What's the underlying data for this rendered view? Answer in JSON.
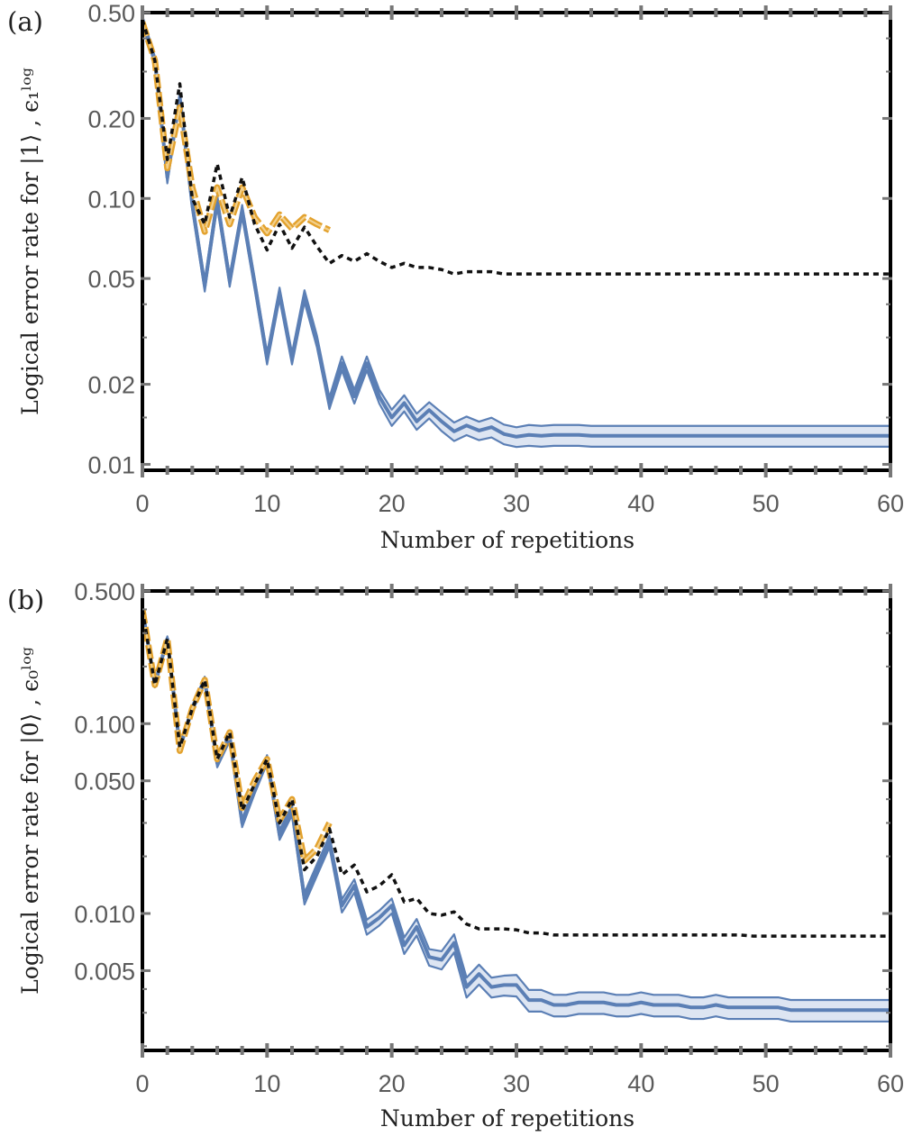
{
  "colors": {
    "theory": "#5b7fb5",
    "band_fill": "#dde5f2",
    "experiment": "#e3a22e",
    "experiment_light": "#f2d08c",
    "classical": "#111111",
    "frame": "#000000",
    "tick_label": "#5a5a5a"
  },
  "chart_data": [
    {
      "type": "line",
      "panel_label": "(a)",
      "xlabel": "Number of repetitions",
      "ylabel": "Logical error rate for |1⟩ , ϵ₁ˡᵒᵍ",
      "xlim": [
        0,
        60
      ],
      "ylim": [
        0.0095,
        0.5
      ],
      "yscale": "log",
      "x_ticks": [
        0,
        10,
        20,
        30,
        40,
        50,
        60
      ],
      "x_tick_labels": [
        "0",
        "10",
        "20",
        "30",
        "40",
        "50",
        "60"
      ],
      "y_ticks": [
        0.5,
        0.2,
        0.1,
        0.05,
        0.02,
        0.01
      ],
      "y_tick_labels": [
        "0.50",
        "0.20",
        "0.10",
        "0.05",
        "0.02",
        "0.01"
      ],
      "y_minor_ticks": [
        0.3,
        0.4,
        0.03,
        0.04,
        0.015
      ],
      "series": [
        {
          "role": "theory",
          "style": "band",
          "x": [
            0,
            1,
            2,
            3,
            4,
            5,
            6,
            7,
            8,
            9,
            10,
            11,
            12,
            13,
            14,
            15,
            16,
            17,
            18,
            19,
            20,
            21,
            22,
            23,
            24,
            25,
            26,
            27,
            28,
            29,
            30,
            31,
            32,
            33,
            34,
            35,
            36,
            37,
            38,
            39,
            40,
            41,
            42,
            43,
            44,
            45,
            46,
            47,
            48,
            49,
            50,
            51,
            52,
            53,
            54,
            55,
            56,
            57,
            58,
            59,
            60
          ],
          "values": [
            0.47,
            0.33,
            0.12,
            0.24,
            0.095,
            0.047,
            0.098,
            0.049,
            0.09,
            0.048,
            0.025,
            0.044,
            0.025,
            0.043,
            0.029,
            0.017,
            0.024,
            0.018,
            0.024,
            0.018,
            0.015,
            0.017,
            0.0145,
            0.016,
            0.0145,
            0.0133,
            0.014,
            0.0134,
            0.0138,
            0.013,
            0.0127,
            0.0129,
            0.0128,
            0.0129,
            0.0129,
            0.0129,
            0.0128,
            0.0128,
            0.0128,
            0.0128,
            0.0128,
            0.0128,
            0.0128,
            0.0128,
            0.0128,
            0.0128,
            0.0128,
            0.0128,
            0.0128,
            0.0128,
            0.0128,
            0.0128,
            0.0128,
            0.0128,
            0.0128,
            0.0128,
            0.0128,
            0.0128,
            0.0128,
            0.0128,
            0.0128
          ],
          "band_rel": [
            0.035,
            0.035,
            0.05,
            0.035,
            0.05,
            0.05,
            0.05,
            0.05,
            0.05,
            0.05,
            0.05,
            0.05,
            0.05,
            0.05,
            0.05,
            0.05,
            0.06,
            0.06,
            0.06,
            0.06,
            0.07,
            0.07,
            0.07,
            0.07,
            0.08,
            0.08,
            0.08,
            0.08,
            0.085,
            0.085,
            0.085,
            0.09,
            0.09,
            0.09,
            0.09,
            0.09,
            0.09,
            0.09,
            0.09,
            0.09,
            0.09,
            0.09,
            0.09,
            0.09,
            0.09,
            0.09,
            0.09,
            0.09,
            0.09,
            0.09,
            0.09,
            0.09,
            0.09,
            0.09,
            0.09,
            0.09,
            0.09,
            0.09,
            0.09,
            0.09,
            0.09
          ]
        },
        {
          "role": "experiment",
          "style": "double-dashed",
          "x": [
            0,
            1,
            2,
            3,
            4,
            5,
            6,
            7,
            8,
            9,
            10,
            11,
            12,
            13,
            14,
            15
          ],
          "values": [
            0.46,
            0.33,
            0.13,
            0.22,
            0.11,
            0.075,
            0.11,
            0.08,
            0.11,
            0.085,
            0.074,
            0.087,
            0.077,
            0.085,
            0.08,
            0.076
          ]
        },
        {
          "role": "classical",
          "style": "dotted",
          "x": [
            0,
            1,
            2,
            3,
            4,
            5,
            6,
            7,
            8,
            9,
            10,
            11,
            12,
            13,
            14,
            15,
            16,
            17,
            18,
            19,
            20,
            21,
            22,
            23,
            24,
            25,
            26,
            27,
            28,
            29,
            30,
            31,
            32,
            33,
            34,
            35,
            36,
            37,
            38,
            39,
            40,
            41,
            42,
            43,
            44,
            45,
            46,
            47,
            48,
            49,
            50,
            51,
            52,
            53,
            54,
            55,
            56,
            57,
            58,
            59,
            60
          ],
          "values": [
            0.47,
            0.33,
            0.14,
            0.27,
            0.1,
            0.08,
            0.135,
            0.085,
            0.12,
            0.08,
            0.064,
            0.08,
            0.065,
            0.078,
            0.066,
            0.057,
            0.061,
            0.058,
            0.062,
            0.058,
            0.055,
            0.057,
            0.055,
            0.055,
            0.054,
            0.052,
            0.053,
            0.053,
            0.053,
            0.052,
            0.052,
            0.052,
            0.052,
            0.052,
            0.052,
            0.052,
            0.052,
            0.052,
            0.052,
            0.052,
            0.052,
            0.052,
            0.052,
            0.052,
            0.052,
            0.052,
            0.052,
            0.052,
            0.052,
            0.052,
            0.052,
            0.052,
            0.052,
            0.052,
            0.052,
            0.052,
            0.052,
            0.052,
            0.052,
            0.052,
            0.052
          ]
        }
      ]
    },
    {
      "type": "line",
      "panel_label": "(b)",
      "xlabel": "Number of repetitions",
      "ylabel": "Logical error rate for |0⟩ , ϵ₀ˡᵒᵍ",
      "xlim": [
        0,
        60
      ],
      "ylim": [
        0.0019,
        0.5
      ],
      "yscale": "log",
      "x_ticks": [
        0,
        10,
        20,
        30,
        40,
        50,
        60
      ],
      "x_tick_labels": [
        "0",
        "10",
        "20",
        "30",
        "40",
        "50",
        "60"
      ],
      "y_ticks": [
        0.5,
        0.1,
        0.05,
        0.01,
        0.005
      ],
      "y_tick_labels": [
        "0.500",
        "0.100",
        "0.050",
        "0.010",
        "0.005"
      ],
      "y_minor_ticks": [
        0.2,
        0.3,
        0.4,
        0.02,
        0.03,
        0.04,
        0.002,
        0.003,
        0.004
      ],
      "series": [
        {
          "role": "theory",
          "style": "band",
          "x": [
            0,
            1,
            2,
            3,
            4,
            5,
            6,
            7,
            8,
            9,
            10,
            11,
            12,
            13,
            14,
            15,
            16,
            17,
            18,
            19,
            20,
            21,
            22,
            23,
            24,
            25,
            26,
            27,
            28,
            29,
            30,
            31,
            32,
            33,
            34,
            35,
            36,
            37,
            38,
            39,
            40,
            41,
            42,
            43,
            44,
            45,
            46,
            47,
            48,
            49,
            50,
            51,
            52,
            53,
            54,
            55,
            56,
            57,
            58,
            59,
            60
          ],
          "values": [
            0.4,
            0.16,
            0.28,
            0.075,
            0.12,
            0.17,
            0.062,
            0.085,
            0.03,
            0.045,
            0.065,
            0.026,
            0.035,
            0.012,
            0.017,
            0.024,
            0.011,
            0.014,
            0.0085,
            0.0095,
            0.011,
            0.0068,
            0.0085,
            0.0059,
            0.0057,
            0.007,
            0.0041,
            0.0048,
            0.0041,
            0.0042,
            0.0042,
            0.0035,
            0.0035,
            0.0033,
            0.0033,
            0.0034,
            0.0034,
            0.0034,
            0.0033,
            0.0033,
            0.0034,
            0.0033,
            0.0033,
            0.0033,
            0.0032,
            0.0032,
            0.0033,
            0.0032,
            0.0032,
            0.0032,
            0.0032,
            0.0032,
            0.0031,
            0.0031,
            0.0031,
            0.0031,
            0.0031,
            0.0031,
            0.0031,
            0.0031,
            0.0031
          ],
          "band_rel": [
            0.03,
            0.03,
            0.03,
            0.04,
            0.04,
            0.04,
            0.05,
            0.05,
            0.05,
            0.05,
            0.05,
            0.06,
            0.06,
            0.07,
            0.07,
            0.07,
            0.08,
            0.08,
            0.09,
            0.09,
            0.09,
            0.1,
            0.1,
            0.1,
            0.11,
            0.11,
            0.12,
            0.12,
            0.12,
            0.12,
            0.13,
            0.13,
            0.13,
            0.13,
            0.13,
            0.13,
            0.13,
            0.13,
            0.13,
            0.13,
            0.13,
            0.13,
            0.13,
            0.13,
            0.13,
            0.13,
            0.13,
            0.13,
            0.13,
            0.13,
            0.13,
            0.13,
            0.13,
            0.13,
            0.13,
            0.13,
            0.13,
            0.13,
            0.13,
            0.13,
            0.13
          ]
        },
        {
          "role": "experiment",
          "style": "double-dashed",
          "x": [
            0,
            1,
            2,
            3,
            4,
            5,
            6,
            7,
            8,
            9,
            10,
            11,
            12,
            13,
            14,
            15
          ],
          "values": [
            0.4,
            0.16,
            0.28,
            0.072,
            0.12,
            0.17,
            0.065,
            0.09,
            0.036,
            0.05,
            0.065,
            0.031,
            0.04,
            0.019,
            0.022,
            0.03
          ]
        },
        {
          "role": "classical",
          "style": "dotted",
          "x": [
            0,
            1,
            2,
            3,
            4,
            5,
            6,
            7,
            8,
            9,
            10,
            11,
            12,
            13,
            14,
            15,
            16,
            17,
            18,
            19,
            20,
            21,
            22,
            23,
            24,
            25,
            26,
            27,
            28,
            29,
            30,
            31,
            32,
            33,
            34,
            35,
            36,
            37,
            38,
            39,
            40,
            41,
            42,
            43,
            44,
            45,
            46,
            47,
            48,
            49,
            50,
            51,
            52,
            53,
            54,
            55,
            56,
            57,
            58,
            59,
            60
          ],
          "values": [
            0.4,
            0.16,
            0.28,
            0.075,
            0.12,
            0.17,
            0.065,
            0.09,
            0.035,
            0.048,
            0.065,
            0.03,
            0.04,
            0.017,
            0.02,
            0.028,
            0.016,
            0.018,
            0.013,
            0.014,
            0.016,
            0.0115,
            0.012,
            0.01,
            0.0098,
            0.0102,
            0.0088,
            0.0083,
            0.0083,
            0.0083,
            0.0082,
            0.0079,
            0.0079,
            0.0077,
            0.0077,
            0.0077,
            0.0077,
            0.0077,
            0.0077,
            0.0077,
            0.0077,
            0.0077,
            0.0077,
            0.0077,
            0.0077,
            0.0077,
            0.0077,
            0.0077,
            0.0077,
            0.0076,
            0.0076,
            0.0076,
            0.0076,
            0.0076,
            0.0076,
            0.0076,
            0.0076,
            0.0076,
            0.0076,
            0.0076,
            0.0076
          ]
        }
      ]
    }
  ]
}
